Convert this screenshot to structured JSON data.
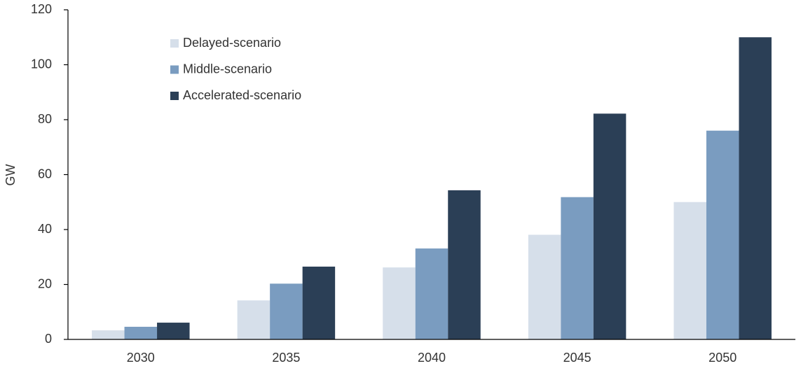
{
  "chart_data": {
    "type": "bar",
    "y_label": "GW",
    "categories": [
      "2030",
      "2035",
      "2040",
      "2045",
      "2050"
    ],
    "series": [
      {
        "name": "Delayed-scenario",
        "color": "#d6dfea",
        "values": [
          3.3,
          14.2,
          26.2,
          38.1,
          50
        ]
      },
      {
        "name": "Middle-scenario",
        "color": "#7a9cc0",
        "values": [
          4.6,
          20.3,
          33.1,
          51.8,
          76
        ]
      },
      {
        "name": "Accelerated-scenario",
        "color": "#2b3f56",
        "values": [
          6.1,
          26.5,
          54.3,
          82.2,
          110
        ]
      }
    ],
    "ylim": [
      0,
      120
    ],
    "yticks": [
      0,
      20,
      40,
      60,
      80,
      100,
      120
    ],
    "grid": false,
    "legend": "upper left"
  }
}
